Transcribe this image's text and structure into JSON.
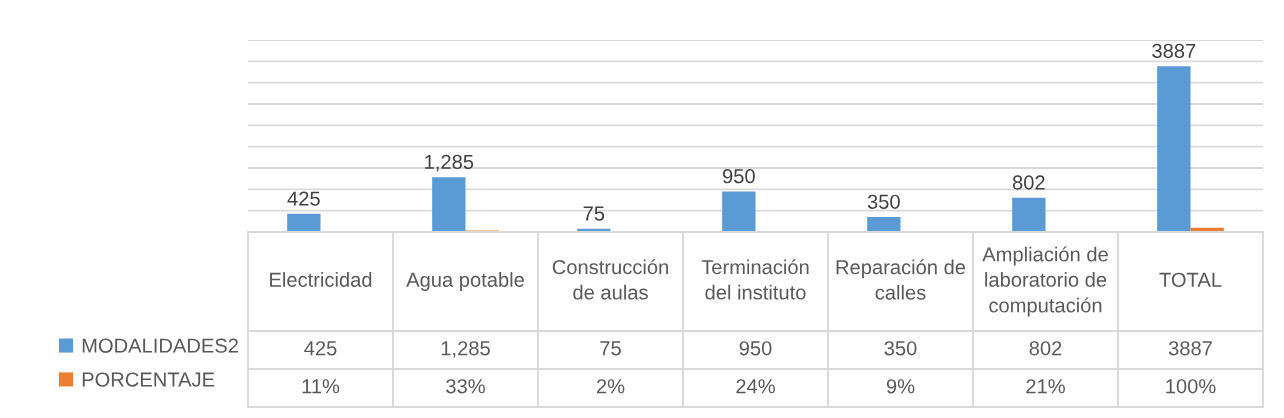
{
  "chart_data": {
    "type": "bar",
    "categories": [
      "Electricidad",
      "Agua potable",
      "Construcción de aulas",
      "Terminación del instituto",
      "Reparación de calles",
      "Ampliación de laboratorio de computación",
      "TOTAL"
    ],
    "series": [
      {
        "name": "MODALIDADES2",
        "color": "#5b9bd5",
        "values": [
          425,
          1285,
          75,
          950,
          350,
          802,
          3887
        ],
        "value_labels": [
          "425",
          "1,285",
          "75",
          "950",
          "350",
          "802",
          "3887"
        ]
      },
      {
        "name": "PORCENTAJE",
        "color": "#ed7d31",
        "values": [
          11,
          33,
          2,
          24,
          9,
          21,
          100
        ],
        "value_labels": [
          "11%",
          "33%",
          "2%",
          "24%",
          "9%",
          "21%",
          "100%"
        ]
      }
    ],
    "ylim": [
      0,
      4500
    ],
    "yticks": [
      {
        "value": 0,
        "label": null
      },
      {
        "value": 500,
        "label": null
      },
      {
        "value": 1000,
        "label": null
      },
      {
        "value": 1500,
        "label": null
      },
      {
        "value": 2000,
        "label": null
      },
      {
        "value": 2500,
        "label": null
      },
      {
        "value": 3000,
        "label": null
      },
      {
        "value": 3500,
        "label": null
      },
      {
        "value": 4000,
        "label": null
      },
      {
        "value": 4500,
        "label": null
      }
    ],
    "grid": "y",
    "legend": "bottom left",
    "tick_labels": "x",
    "annotations": [
      {
        "text": "425",
        "x": "Electricidad",
        "y": 425
      },
      {
        "text": "1,285",
        "x": "Agua potable",
        "y": 1285
      },
      {
        "text": "75",
        "x": "Construcción de aulas",
        "y": 75
      },
      {
        "text": "950",
        "x": "Terminación del instituto",
        "y": 950
      },
      {
        "text": "350",
        "x": "Reparación de calles",
        "y": 350
      },
      {
        "text": "802",
        "x": "Ampliación de laboratorio de computación",
        "y": 802
      },
      {
        "text": "3887",
        "x": "TOTAL",
        "y": 3887
      }
    ]
  }
}
